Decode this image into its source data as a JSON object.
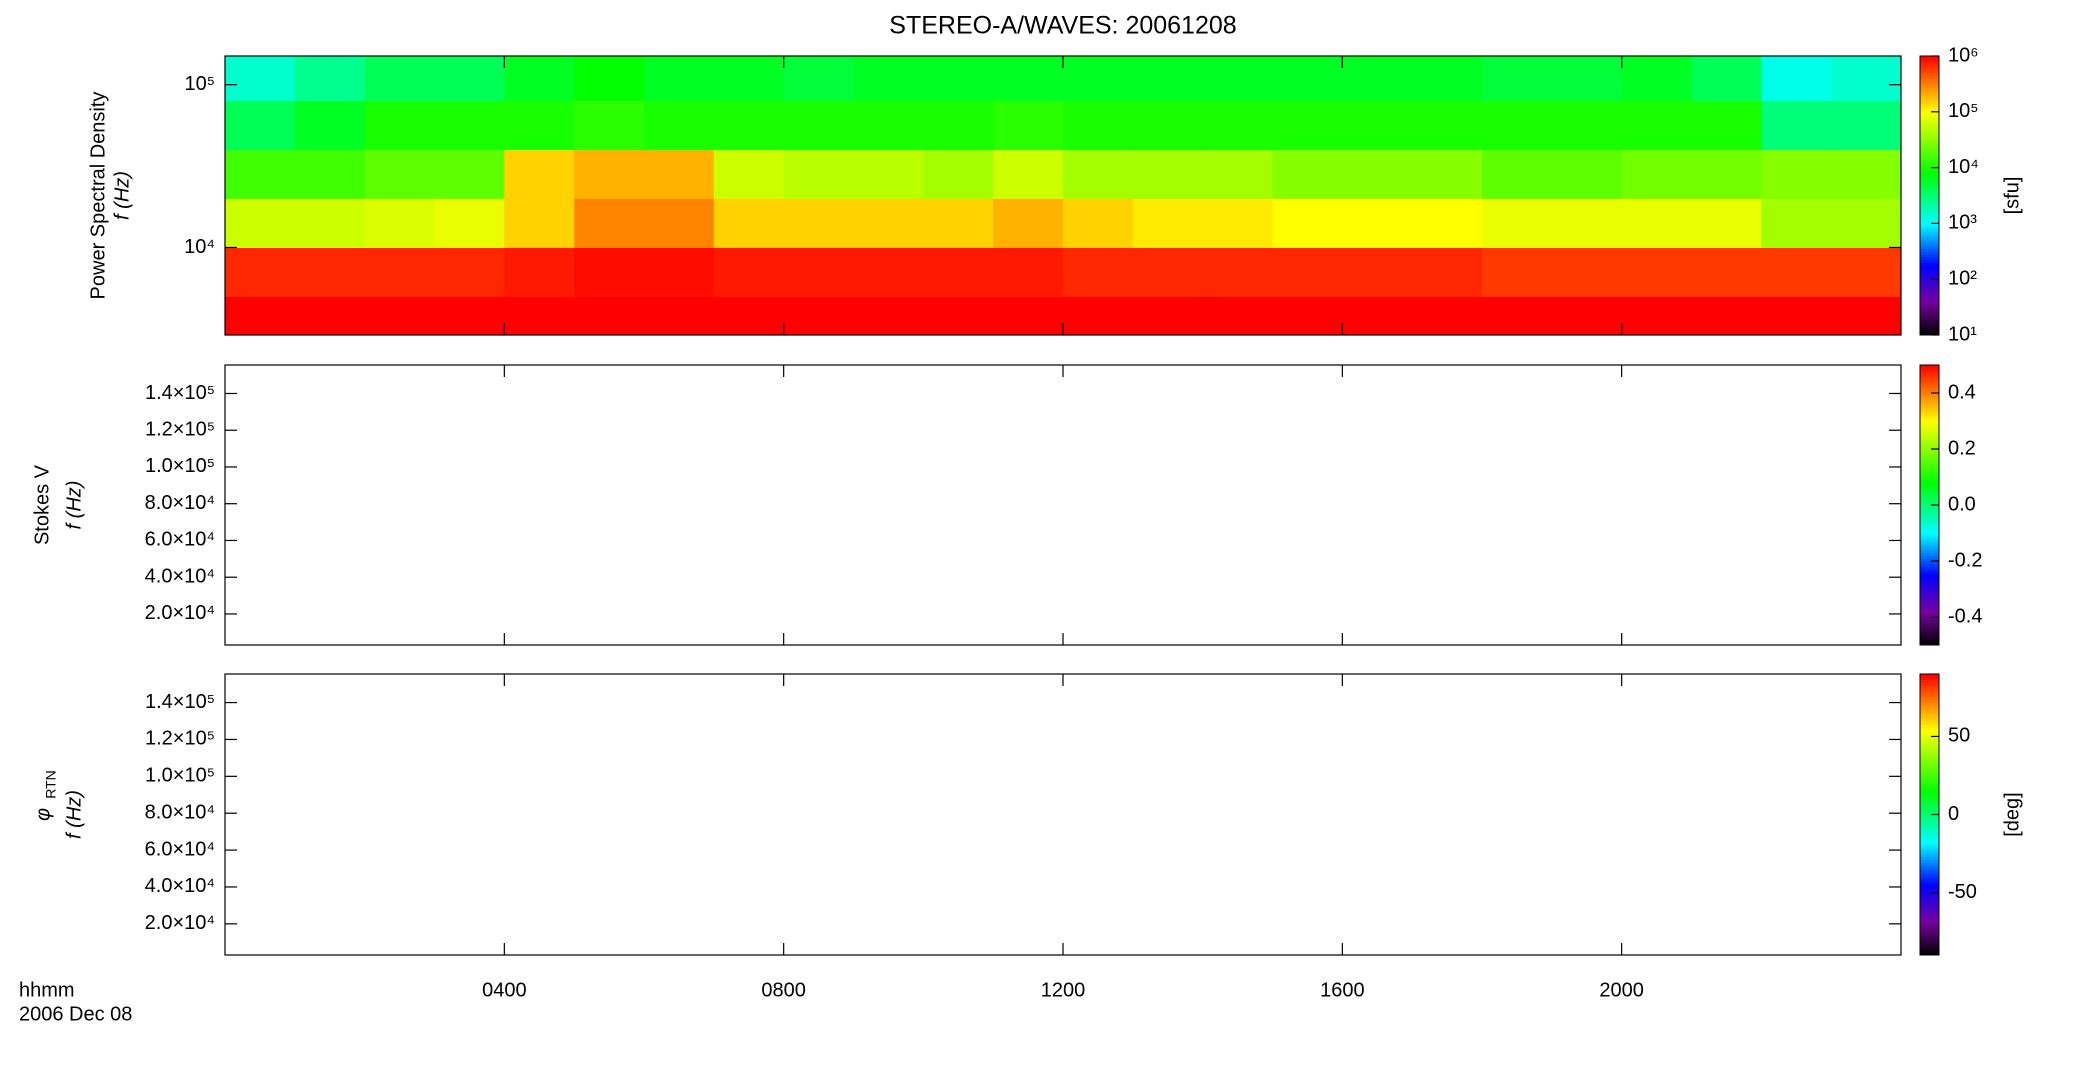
{
  "page": {
    "title": "STEREO-A/WAVES: 20061208",
    "time_label": "hhmm",
    "date_label": "2006 Dec 08"
  },
  "time_axis": {
    "xlim": [
      0,
      24
    ],
    "xticks": [
      {
        "value": 4,
        "label": "0400"
      },
      {
        "value": 8,
        "label": "0800"
      },
      {
        "value": 12,
        "label": "1200"
      },
      {
        "value": 16,
        "label": "1600"
      },
      {
        "value": 20,
        "label": "2000"
      }
    ]
  },
  "chart_data": [
    {
      "type": "heatmap",
      "ylabel": "Power Spectral Density",
      "ylabel2": "f (Hz)",
      "yscale": "log",
      "ylim": [
        2900,
        150000
      ],
      "yticks": [
        {
          "value": 10000,
          "label": "10⁴"
        },
        {
          "value": 100000,
          "label": "10⁵"
        }
      ],
      "colormap": "rainbow",
      "zscale": "log",
      "zlim": [
        10,
        1000000
      ],
      "zticks": [
        {
          "value": 10,
          "label": "10¹"
        },
        {
          "value": 100,
          "label": "10²"
        },
        {
          "value": 1000,
          "label": "10³"
        },
        {
          "value": 10000,
          "label": "10⁴"
        },
        {
          "value": 100000,
          "label": "10⁵"
        },
        {
          "value": 1000000,
          "label": "10⁶"
        }
      ],
      "zlabel": "[sfu]",
      "x_edges": [
        0,
        1,
        2,
        3,
        4,
        5,
        6,
        7,
        8,
        9,
        10,
        11,
        12,
        13,
        14,
        15,
        16,
        17,
        18,
        19,
        20,
        21,
        22,
        23,
        24
      ],
      "y_edges": [
        2900,
        5000,
        10000,
        20000,
        40000,
        80000,
        150000
      ],
      "values": [
        [
          1000000,
          1000000,
          1000000,
          1000000,
          1000000,
          1000000,
          1000000,
          1000000,
          1000000,
          1000000,
          1000000,
          1000000,
          1000000,
          1000000,
          1000000,
          1000000,
          1000000,
          1000000,
          1000000,
          1000000,
          1000000,
          1000000,
          1000000,
          1000000
        ],
        [
          700000,
          700000,
          700000,
          700000,
          800000,
          900000,
          900000,
          800000,
          800000,
          800000,
          800000,
          800000,
          700000,
          700000,
          700000,
          700000,
          700000,
          700000,
          600000,
          600000,
          600000,
          600000,
          600000,
          600000
        ],
        [
          60000,
          60000,
          70000,
          80000,
          150000,
          300000,
          300000,
          150000,
          150000,
          150000,
          150000,
          200000,
          150000,
          120000,
          120000,
          100000,
          100000,
          100000,
          80000,
          80000,
          80000,
          80000,
          40000,
          40000
        ],
        [
          15000,
          15000,
          20000,
          20000,
          150000,
          200000,
          200000,
          60000,
          50000,
          50000,
          40000,
          60000,
          40000,
          40000,
          40000,
          30000,
          30000,
          30000,
          20000,
          20000,
          25000,
          25000,
          30000,
          30000
        ],
        [
          4000,
          6000,
          10000,
          10000,
          10000,
          12000,
          10000,
          10000,
          10000,
          10000,
          10000,
          12000,
          10000,
          10000,
          10000,
          10000,
          10000,
          10000,
          10000,
          10000,
          10000,
          10000,
          3000,
          3000
        ],
        [
          1500,
          2500,
          4000,
          4000,
          6000,
          8000,
          6000,
          6000,
          5000,
          6000,
          6000,
          6000,
          6000,
          6000,
          6000,
          6000,
          6000,
          6000,
          5000,
          5000,
          6000,
          4000,
          1200,
          1500
        ]
      ]
    },
    {
      "type": "heatmap",
      "ylabel": "Stokes V",
      "ylabel2": "f (Hz)",
      "yscale": "linear",
      "ylim": [
        3100,
        155500
      ],
      "yticks": [
        {
          "value": 20000,
          "label": "2.0×10⁴"
        },
        {
          "value": 40000,
          "label": "4.0×10⁴"
        },
        {
          "value": 60000,
          "label": "6.0×10⁴"
        },
        {
          "value": 80000,
          "label": "8.0×10⁴"
        },
        {
          "value": 100000,
          "label": "1.0×10⁵"
        },
        {
          "value": 120000,
          "label": "1.2×10⁵"
        },
        {
          "value": 140000,
          "label": "1.4×10⁵"
        }
      ],
      "colormap": "rainbow",
      "zscale": "linear",
      "zlim": [
        -0.5,
        0.5
      ],
      "zticks": [
        -0.4,
        -0.2,
        {
          "value": 0,
          "label": "0.0"
        },
        0.2,
        0.4
      ]
    },
    {
      "type": "heatmap",
      "ylabel": "φ",
      "ylabel_sub": "RTN",
      "ylabel2": "f (Hz)",
      "yscale": "linear",
      "ylim": [
        3100,
        155500
      ],
      "yticks": [
        {
          "value": 20000,
          "label": "2.0×10⁴"
        },
        {
          "value": 40000,
          "label": "4.0×10⁴"
        },
        {
          "value": 60000,
          "label": "6.0×10⁴"
        },
        {
          "value": 80000,
          "label": "8.0×10⁴"
        },
        {
          "value": 100000,
          "label": "1.0×10⁵"
        },
        {
          "value": 120000,
          "label": "1.2×10⁵"
        },
        {
          "value": 140000,
          "label": "1.4×10⁵"
        }
      ],
      "colormap": "rainbow",
      "zscale": "linear",
      "zlim": [
        -90,
        90
      ],
      "zticks": [
        -50,
        0,
        50
      ],
      "zlabel": "[deg]"
    }
  ]
}
